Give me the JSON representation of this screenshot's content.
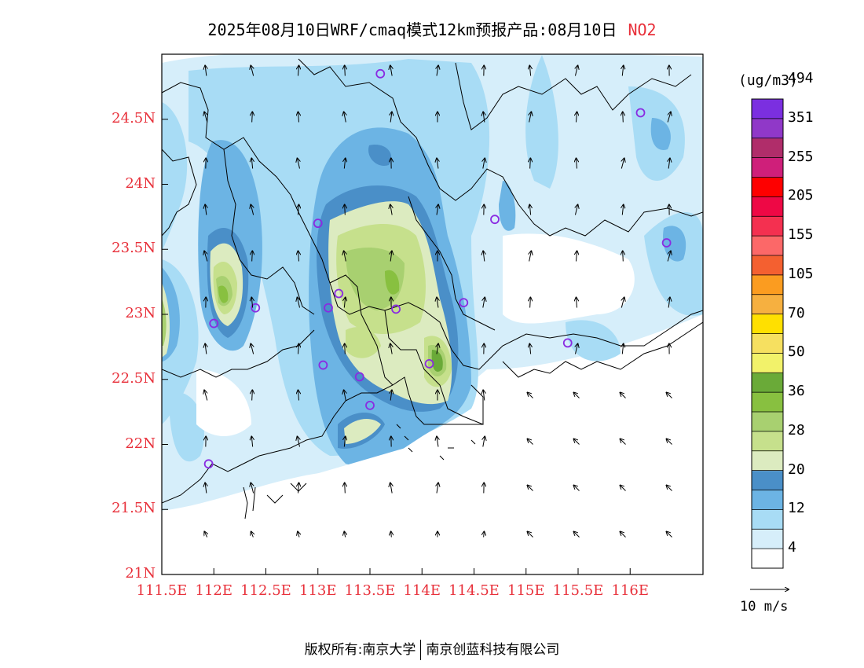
{
  "title": {
    "main": "2025年08月10日WRF/cmaq模式12km预报产品:08月10日",
    "pollutant": "NO2"
  },
  "lat_labels": [
    "24.5N",
    "24N",
    "23.5N",
    "23N",
    "22.5N",
    "22N",
    "21.5N",
    "21N"
  ],
  "lon_labels": [
    "111.5E",
    "112E",
    "112.5E",
    "113E",
    "113.5E",
    "114E",
    "114.5E",
    "115E",
    "115.5E",
    "116E"
  ],
  "colorbar": {
    "unit": "(ug/m3)",
    "colors": [
      "#ffffff",
      "#d6eefa",
      "#a8dcf5",
      "#6cb4e4",
      "#4a8fc8",
      "#dcebc0",
      "#c6e08c",
      "#a8d070",
      "#88c040",
      "#6aaa38",
      "#f2f26a",
      "#f6e060",
      "#ffe000",
      "#f6b040",
      "#fb9c20",
      "#f46030",
      "#fc6868",
      "#f43050",
      "#ee0845",
      "#fe0000",
      "#cf1f7a",
      "#b02d6a",
      "#9038c8",
      "#7b2fe0"
    ],
    "labels": [
      "4",
      "12",
      "20",
      "28",
      "36",
      "50",
      "70",
      "105",
      "155",
      "205",
      "255",
      "351",
      "494"
    ]
  },
  "wind_vector_label": "10 m/s",
  "map_data": {
    "lat_range": [
      21,
      25
    ],
    "lon_range": [
      111.5,
      116.7
    ],
    "stations": [
      {
        "lon": 113.6,
        "lat": 24.85
      },
      {
        "lon": 116.1,
        "lat": 24.55
      },
      {
        "lon": 113.0,
        "lat": 23.7
      },
      {
        "lon": 114.7,
        "lat": 23.73
      },
      {
        "lon": 116.35,
        "lat": 23.55
      },
      {
        "lon": 112.4,
        "lat": 23.05
      },
      {
        "lon": 113.1,
        "lat": 23.05
      },
      {
        "lon": 113.2,
        "lat": 23.16
      },
      {
        "lon": 113.75,
        "lat": 23.04
      },
      {
        "lon": 114.4,
        "lat": 23.09
      },
      {
        "lon": 112.0,
        "lat": 22.93
      },
      {
        "lon": 115.4,
        "lat": 22.78
      },
      {
        "lon": 113.05,
        "lat": 22.61
      },
      {
        "lon": 114.07,
        "lat": 22.62
      },
      {
        "lon": 113.4,
        "lat": 22.52
      },
      {
        "lon": 113.5,
        "lat": 22.3
      },
      {
        "lon": 111.95,
        "lat": 21.85
      }
    ]
  },
  "footer": {
    "left": "版权所有:南京大学",
    "right": "南京创蓝科技有限公司"
  }
}
